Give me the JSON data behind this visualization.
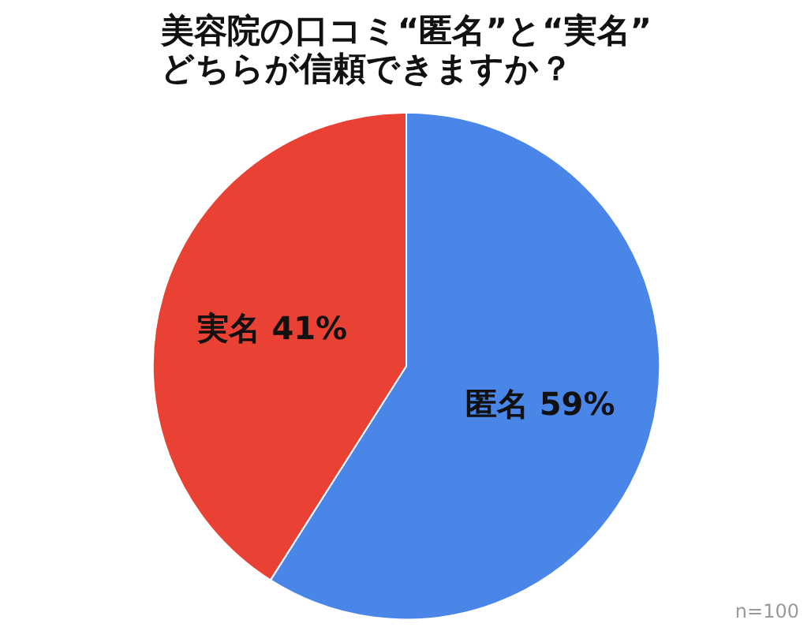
{
  "chart_data": {
    "type": "pie",
    "title": "美容院の口コミ“匿名”と“実名”\nどちらが信頼できますか？",
    "categories": [
      "匿名",
      "実名"
    ],
    "values": [
      59,
      41
    ],
    "colors": [
      "#4a86e8",
      "#e94235"
    ],
    "value_labels": [
      "59%",
      "41%"
    ],
    "annotations": [
      "n=100"
    ]
  }
}
